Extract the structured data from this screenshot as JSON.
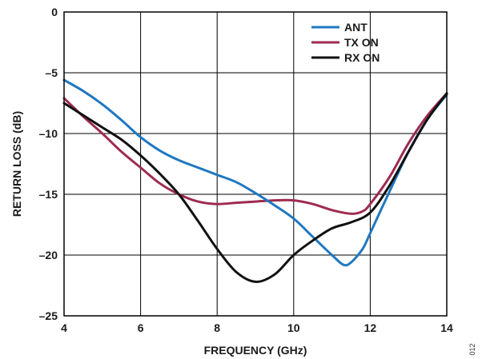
{
  "chart_data": {
    "type": "line",
    "title": "",
    "xlabel": "FREQUENCY (GHz)",
    "ylabel": "RETURN LOSS (dB)",
    "xlim": [
      4,
      14
    ],
    "ylim": [
      -25,
      0
    ],
    "xticks": [
      4,
      6,
      8,
      10,
      12,
      14
    ],
    "yticks": [
      0,
      -5,
      -10,
      -15,
      -20,
      -25
    ],
    "xtick_labels": [
      "4",
      "6",
      "8",
      "10",
      "12",
      "14"
    ],
    "ytick_labels": [
      "0",
      "–5",
      "–10",
      "–15",
      "–20",
      "–25"
    ],
    "grid": true,
    "legend_position": "top-right",
    "series": [
      {
        "name": "ANT",
        "color": "#1f78c1",
        "x": [
          4.0,
          4.5,
          5.0,
          5.5,
          6.0,
          6.5,
          7.0,
          7.5,
          8.0,
          8.5,
          9.0,
          9.5,
          10.0,
          10.5,
          11.0,
          11.3,
          11.5,
          11.8,
          12.0,
          12.5,
          13.0,
          13.5,
          14.0
        ],
        "y": [
          -5.6,
          -6.5,
          -7.6,
          -8.9,
          -10.3,
          -11.4,
          -12.2,
          -12.8,
          -13.4,
          -14.0,
          -14.9,
          -15.9,
          -17.0,
          -18.5,
          -20.0,
          -20.8,
          -20.6,
          -19.5,
          -18.2,
          -14.8,
          -11.5,
          -8.8,
          -6.8
        ]
      },
      {
        "name": "TX ON",
        "color": "#9e2b4f",
        "x": [
          4.0,
          4.5,
          5.0,
          5.5,
          6.0,
          6.5,
          7.0,
          7.5,
          8.0,
          8.5,
          9.0,
          9.5,
          10.0,
          10.5,
          11.0,
          11.5,
          11.8,
          12.0,
          12.5,
          13.0,
          13.5,
          14.0
        ],
        "y": [
          -7.1,
          -8.6,
          -10.0,
          -11.5,
          -12.8,
          -14.1,
          -15.0,
          -15.6,
          -15.8,
          -15.7,
          -15.6,
          -15.5,
          -15.5,
          -15.8,
          -16.3,
          -16.6,
          -16.4,
          -15.8,
          -13.6,
          -10.8,
          -8.5,
          -6.7
        ]
      },
      {
        "name": "RX ON",
        "color": "#111111",
        "x": [
          4.0,
          4.5,
          5.0,
          5.5,
          6.0,
          6.5,
          7.0,
          7.5,
          8.0,
          8.5,
          9.0,
          9.5,
          10.0,
          10.5,
          11.0,
          11.5,
          12.0,
          12.5,
          13.0,
          13.5,
          14.0
        ],
        "y": [
          -7.5,
          -8.5,
          -9.5,
          -10.5,
          -11.8,
          -13.3,
          -15.0,
          -17.2,
          -19.5,
          -21.4,
          -22.2,
          -21.6,
          -20.0,
          -18.8,
          -17.8,
          -17.3,
          -16.5,
          -14.3,
          -11.5,
          -8.8,
          -6.7
        ]
      }
    ]
  },
  "figure_id": "012"
}
